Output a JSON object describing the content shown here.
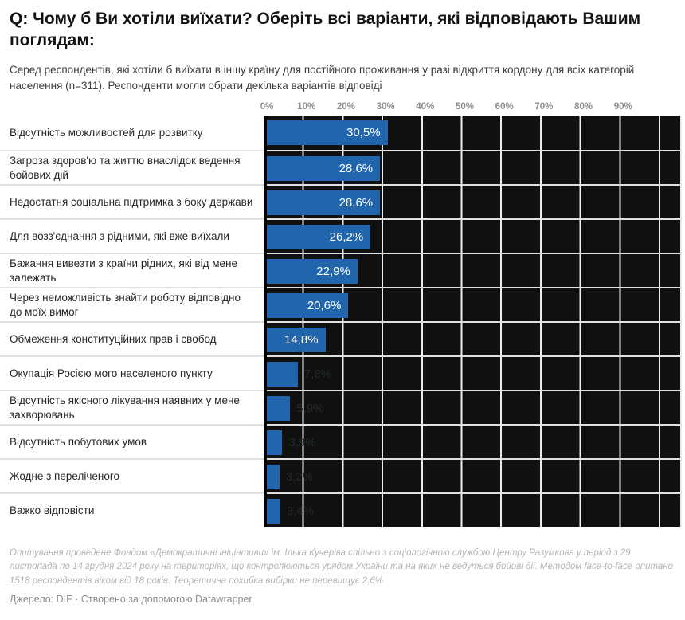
{
  "header": {
    "title": "Q: Чому б Ви хотіли виїхати? Оберіть всі варіанти, які відповідають Вашим поглядам:",
    "subtitle": "Серед респондентів, які хотіли б виїхати в іншу країну для постійного проживання у разі відкриття кордону для всіх категорій населення (n=311). Респонденти могли обрати декілька варіантів відповіді"
  },
  "chart_data": {
    "type": "bar",
    "orientation": "horizontal",
    "unit": "%",
    "xlim": [
      0,
      104
    ],
    "grid": true,
    "ticks": [
      "0%",
      "10%",
      "20%",
      "30%",
      "40%",
      "50%",
      "60%",
      "70%",
      "80%",
      "90%"
    ],
    "tick_values": [
      0,
      10,
      20,
      30,
      40,
      50,
      60,
      70,
      80,
      90
    ],
    "rows": [
      {
        "category": "Відсутність можливостей для розвитку",
        "value": 30.5,
        "value_label": "30,5%"
      },
      {
        "category": "Загроза здоров'ю та життю внаслідок ведення бойових дій",
        "value": 28.6,
        "value_label": "28,6%"
      },
      {
        "category": "Недостатня соціальна підтримка з боку держави",
        "value": 28.6,
        "value_label": "28,6%"
      },
      {
        "category": "Для возз'єднання з рідними, які вже виїхали",
        "value": 26.2,
        "value_label": "26,2%"
      },
      {
        "category": "Бажання вивезти з країни рідних, які від мене залежать",
        "value": 22.9,
        "value_label": "22,9%"
      },
      {
        "category": "Через неможливість знайти роботу відповідно до моїх вимог",
        "value": 20.6,
        "value_label": "20,6%"
      },
      {
        "category": "Обмеження конституційних прав і свобод",
        "value": 14.8,
        "value_label": "14,8%"
      },
      {
        "category": "Окупація Росією мого населеного пункту",
        "value": 7.8,
        "value_label": "7,8%"
      },
      {
        "category": "Відсутність якісного лікування наявних у мене захворювань",
        "value": 5.9,
        "value_label": "5,9%"
      },
      {
        "category": "Відсутність побутових умов",
        "value": 3.9,
        "value_label": "3,9%"
      },
      {
        "category": "Жодне з переліченого",
        "value": 3.2,
        "value_label": "3,2%"
      },
      {
        "category": "Важко відповісти",
        "value": 3.4,
        "value_label": "3,4%"
      }
    ],
    "colors": {
      "bar": "#2166ac",
      "plot_background": "#101010",
      "gridline": "#ececec",
      "value_label_inside": "#ffffff",
      "value_label_outside": "#222b26"
    }
  },
  "footer": {
    "notes": "Опитування проведене Фондом «Демократичні ініціативи» ім. Ілька Кучеріва спільно з соціологічною службою Центру Разумкова у період з 29 листопада по 14 грудня 2024 року на територіях, що контролюються урядом України та на яких не ведуться бойові дії. Методом face-to-face опитано 1518 респондентів віком від 18 років. Теоретична похибка вибірки не перевищує 2,6%",
    "source": "Джерело: DIF · Створено за допомогою Datawrapper"
  }
}
